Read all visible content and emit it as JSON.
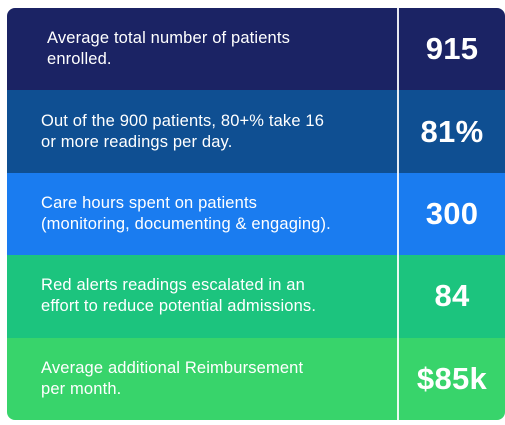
{
  "stats": [
    {
      "label_line1": "Average total number of patients",
      "label_line2": "enrolled.",
      "value": "915"
    },
    {
      "label_line1": "Out of the 900 patients, 80+% take 16",
      "label_line2": "or more readings per day.",
      "value": "81%"
    },
    {
      "label_line1": "Care hours spent on patients",
      "label_line2": "(monitoring, documenting & engaging).",
      "value": "300"
    },
    {
      "label_line1": "Red alerts readings escalated in an",
      "label_line2": "effort to reduce potential admissions.",
      "value": "84"
    },
    {
      "label_line1": "Average additional Reimbursement",
      "label_line2": "per month.",
      "value": "$85k"
    }
  ],
  "colors": {
    "row_1": "#1b2364",
    "row_2": "#0f4f92",
    "row_3": "#1a7cf0",
    "row_4": "#1cc47e",
    "row_5": "#38d46b",
    "text": "#ffffff"
  }
}
